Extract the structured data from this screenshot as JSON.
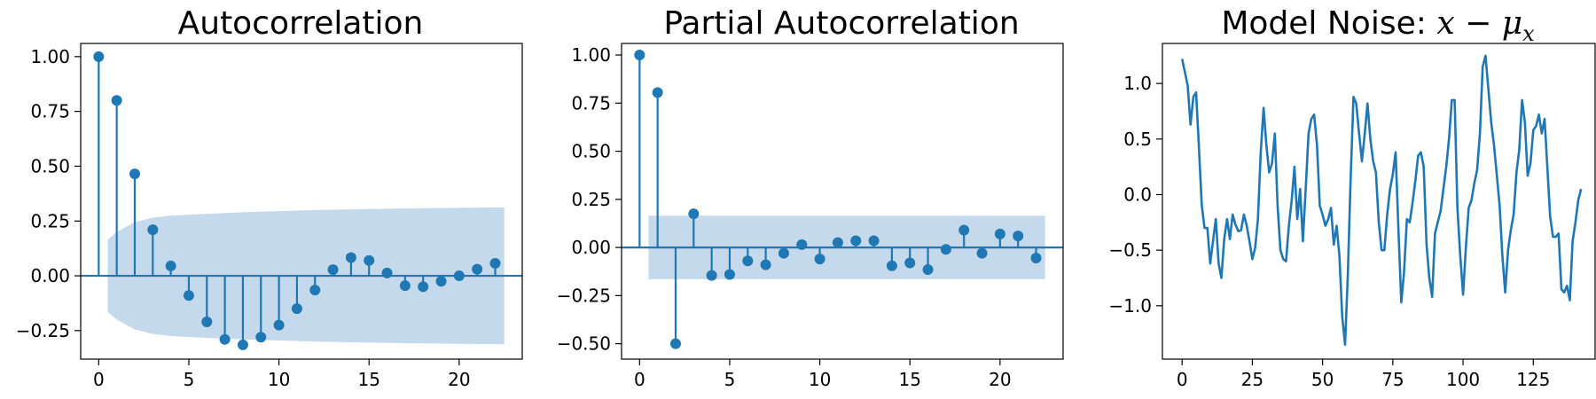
{
  "chart_data": [
    {
      "type": "stem",
      "title": "Autocorrelation",
      "x": [
        0,
        1,
        2,
        3,
        4,
        5,
        6,
        7,
        8,
        9,
        10,
        11,
        12,
        13,
        14,
        15,
        16,
        17,
        18,
        19,
        20,
        21,
        22
      ],
      "values": [
        1.0,
        0.8,
        0.465,
        0.21,
        0.045,
        -0.09,
        -0.21,
        -0.29,
        -0.315,
        -0.28,
        -0.225,
        -0.15,
        -0.065,
        0.028,
        0.083,
        0.07,
        0.013,
        -0.045,
        -0.05,
        -0.025,
        0.0,
        0.03,
        0.057
      ],
      "confidence_band": {
        "x": [
          0.5,
          1,
          2,
          3,
          4,
          6,
          8,
          10,
          12,
          14,
          16,
          18,
          20,
          22.5
        ],
        "upper": [
          0.165,
          0.2,
          0.245,
          0.265,
          0.275,
          0.283,
          0.29,
          0.295,
          0.3,
          0.303,
          0.306,
          0.308,
          0.31,
          0.312
        ]
      },
      "xlim": [
        -1,
        23.5
      ],
      "ylim": [
        -0.38,
        1.06
      ],
      "xticks": [
        0,
        5,
        10,
        15,
        20
      ],
      "yticks": [
        -0.25,
        0.0,
        0.25,
        0.5,
        0.75,
        1.0
      ],
      "ytick_labels": [
        "−0.25",
        "0.00",
        "0.25",
        "0.50",
        "0.75",
        "1.00"
      ],
      "xlabel": "",
      "ylabel": "",
      "color": "#1f77b4",
      "band_color": "#c5d9ec",
      "grid": false
    },
    {
      "type": "stem",
      "title": "Partial Autocorrelation",
      "x": [
        0,
        1,
        2,
        3,
        4,
        5,
        6,
        7,
        8,
        9,
        10,
        11,
        12,
        13,
        14,
        15,
        16,
        17,
        18,
        19,
        20,
        21,
        22
      ],
      "values": [
        1.0,
        0.805,
        -0.5,
        0.175,
        -0.145,
        -0.14,
        -0.07,
        -0.09,
        -0.03,
        0.015,
        -0.06,
        0.025,
        0.035,
        0.035,
        -0.095,
        -0.08,
        -0.115,
        -0.01,
        0.09,
        -0.03,
        0.07,
        0.06,
        -0.055
      ],
      "confidence_band": {
        "x": [
          0.5,
          22.5
        ],
        "upper": [
          0.165,
          0.165
        ]
      },
      "xlim": [
        -1,
        23.5
      ],
      "ylim": [
        -0.58,
        1.06
      ],
      "xticks": [
        0,
        5,
        10,
        15,
        20
      ],
      "yticks": [
        -0.5,
        -0.25,
        0.0,
        0.25,
        0.5,
        0.75,
        1.0
      ],
      "ytick_labels": [
        "−0.50",
        "−0.25",
        "0.00",
        "0.25",
        "0.50",
        "0.75",
        "1.00"
      ],
      "xlabel": "",
      "ylabel": "",
      "color": "#1f77b4",
      "band_color": "#c5d9ec",
      "grid": false
    },
    {
      "type": "line",
      "title": "Model Noise: x − μx",
      "title_main": "Model Noise: ",
      "title_math_x": "x",
      "title_math_minus": " − ",
      "title_math_mu": "μ",
      "title_math_sub": "x",
      "values": [
        1.22,
        1.1,
        0.98,
        0.63,
        0.88,
        0.92,
        0.42,
        -0.1,
        -0.3,
        -0.3,
        -0.62,
        -0.42,
        -0.22,
        -0.62,
        -0.75,
        -0.4,
        -0.22,
        -0.4,
        -0.18,
        -0.27,
        -0.33,
        -0.32,
        -0.18,
        -0.28,
        -0.42,
        -0.58,
        -0.48,
        -0.22,
        0.38,
        0.78,
        0.45,
        0.2,
        0.28,
        0.55,
        -0.1,
        -0.5,
        -0.58,
        -0.6,
        -0.28,
        -0.05,
        0.25,
        -0.22,
        0.05,
        -0.42,
        0.05,
        0.55,
        0.68,
        0.72,
        0.45,
        -0.1,
        -0.18,
        -0.28,
        -0.22,
        -0.12,
        -0.45,
        -0.28,
        -0.55,
        -1.1,
        -1.35,
        -0.72,
        0.15,
        0.88,
        0.82,
        0.55,
        0.3,
        0.55,
        0.82,
        0.5,
        0.3,
        0.2,
        -0.25,
        -0.5,
        -0.5,
        -0.18,
        0.05,
        0.18,
        0.38,
        -0.32,
        -0.97,
        -0.7,
        -0.22,
        -0.25,
        -0.08,
        0.12,
        0.35,
        0.38,
        0.25,
        -0.45,
        -0.75,
        -0.92,
        -0.35,
        -0.25,
        -0.15,
        0.05,
        0.25,
        0.5,
        0.85,
        0.85,
        -0.12,
        -0.55,
        -0.9,
        -0.48,
        -0.12,
        -0.05,
        0.1,
        0.22,
        0.55,
        1.15,
        1.25,
        0.95,
        0.65,
        0.45,
        0.18,
        -0.1,
        -0.55,
        -0.88,
        -0.5,
        -0.32,
        -0.18,
        0.2,
        0.4,
        0.85,
        0.65,
        0.17,
        0.28,
        0.58,
        0.62,
        0.72,
        0.55,
        0.68,
        0.25,
        -0.2,
        -0.38,
        -0.38,
        -0.35,
        -0.85,
        -0.88,
        -0.82,
        -0.95,
        -0.42,
        -0.25,
        -0.05,
        0.05
      ],
      "color": "#1f77b4",
      "xlim": [
        -7,
        147
      ],
      "ylim": [
        -1.48,
        1.36
      ],
      "xticks": [
        0,
        25,
        50,
        75,
        100,
        125
      ],
      "yticks": [
        -1.0,
        -0.5,
        0.0,
        0.5,
        1.0
      ],
      "ytick_labels": [
        "−1.0",
        "−0.5",
        "0.0",
        "0.5",
        "1.0"
      ],
      "xlabel": "",
      "ylabel": "",
      "grid": false
    }
  ]
}
